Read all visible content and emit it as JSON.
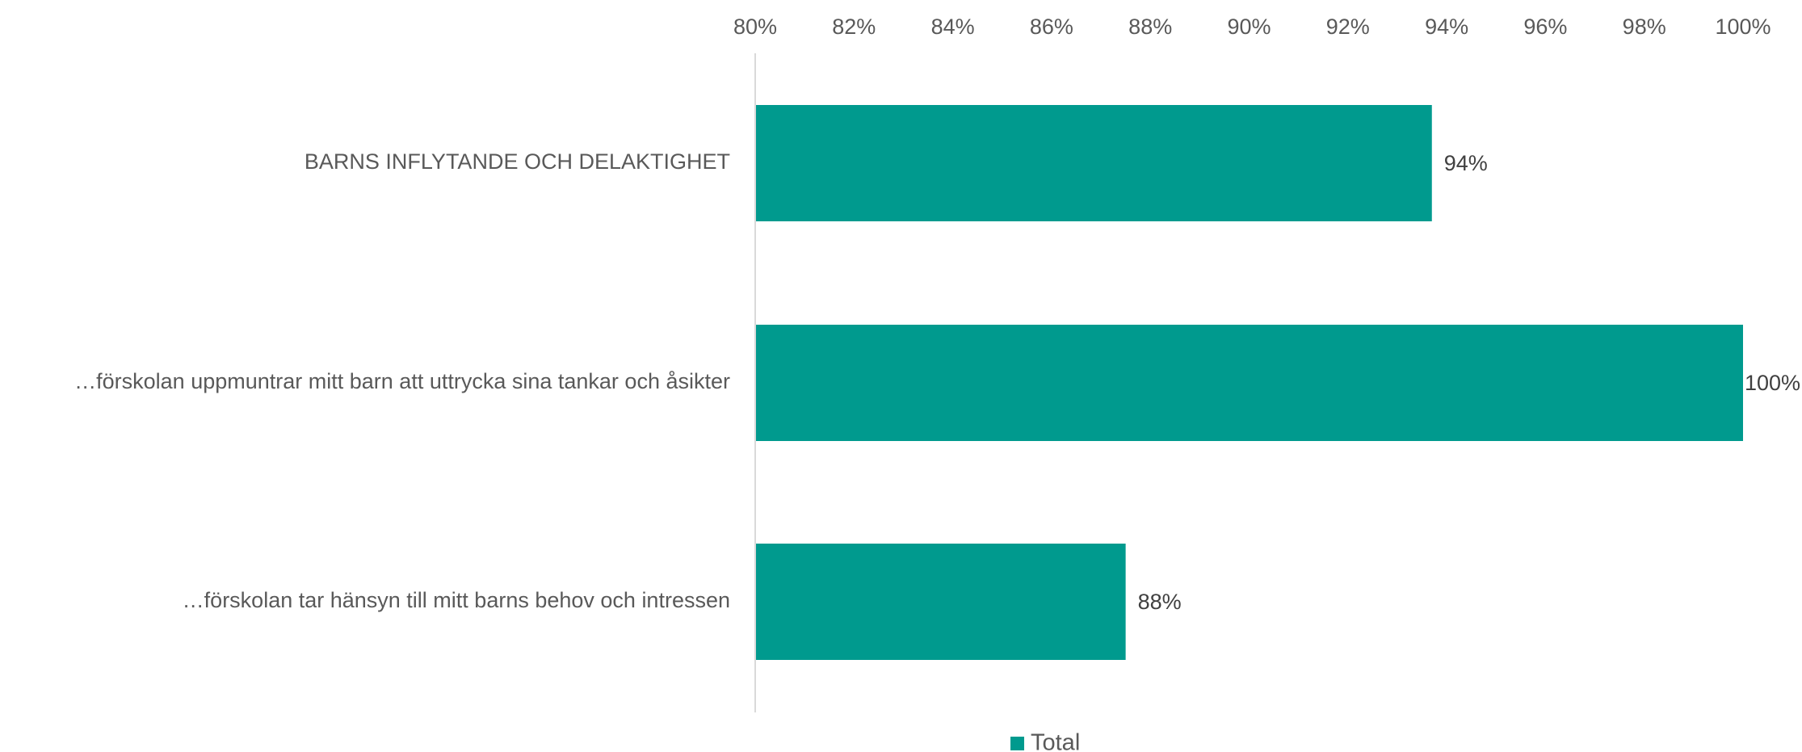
{
  "chart_data": {
    "type": "bar",
    "orientation": "horizontal",
    "categories": [
      "BARNS INFLYTANDE OCH DELAKTIGHET",
      "…förskolan uppmuntrar mitt barn att uttrycka sina tankar och åsikter",
      "…förskolan tar hänsyn till mitt barns behov och intressen"
    ],
    "series": [
      {
        "name": "Total",
        "values": [
          0.937,
          1.0,
          0.875
        ],
        "data_labels": [
          "94%",
          "100%",
          "88%"
        ],
        "color": "#009A8E"
      }
    ],
    "xlim": [
      0.8,
      1.0
    ],
    "x_ticks": [
      "80%",
      "82%",
      "84%",
      "86%",
      "88%",
      "90%",
      "92%",
      "94%",
      "96%",
      "98%",
      "100%"
    ],
    "x_axis_position": "top",
    "grid": false,
    "legend_position": "bottom",
    "axis_line_color": "#D9D9D9"
  }
}
